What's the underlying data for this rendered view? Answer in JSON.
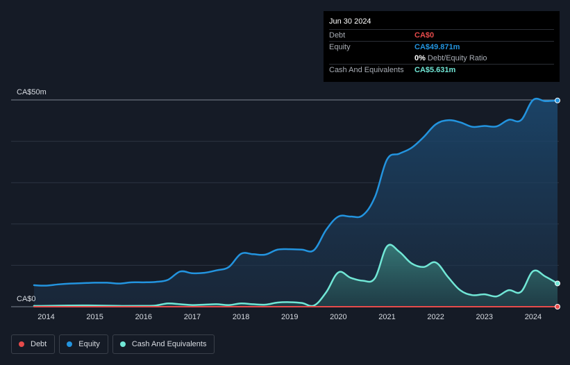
{
  "colors": {
    "background": "#151b26",
    "debt": "#e64b4b",
    "equity": "#2394df",
    "cash": "#71e7d6"
  },
  "tooltip": {
    "date": "Jun 30 2024",
    "rows": [
      {
        "label": "Debt",
        "value": "CA$0",
        "color": "#e64b4b"
      },
      {
        "label": "Equity",
        "value": "CA$49.871m",
        "color": "#2394df"
      },
      {
        "label": "Cash And Equivalents",
        "value": "CA$5.631m",
        "color": "#71e7d6"
      }
    ],
    "ratio_value": "0%",
    "ratio_label": "Debt/Equity Ratio"
  },
  "legend": [
    {
      "label": "Debt",
      "color": "#e64b4b"
    },
    {
      "label": "Equity",
      "color": "#2394df"
    },
    {
      "label": "Cash And Equivalents",
      "color": "#71e7d6"
    }
  ],
  "chart_data": {
    "type": "area",
    "xlabel": "",
    "ylabel": "",
    "y_tick_labels": [
      "CA$0",
      "CA$50m"
    ],
    "ylim": [
      0,
      50
    ],
    "y_unit": "CA$ millions",
    "xlim": [
      2013.75,
      2024.5
    ],
    "x_tick_labels": [
      "2014",
      "2015",
      "2016",
      "2017",
      "2018",
      "2019",
      "2020",
      "2021",
      "2022",
      "2023",
      "2024"
    ],
    "grid": true,
    "legend_position": "bottom-left",
    "series": [
      {
        "name": "Debt",
        "color": "#e64b4b",
        "points": [
          [
            2013.75,
            0
          ],
          [
            2024.5,
            0
          ]
        ]
      },
      {
        "name": "Equity",
        "color": "#2394df",
        "points": [
          [
            2013.75,
            5.2
          ],
          [
            2014.0,
            5.1
          ],
          [
            2014.25,
            5.4
          ],
          [
            2014.5,
            5.6
          ],
          [
            2014.75,
            5.7
          ],
          [
            2015.0,
            5.8
          ],
          [
            2015.25,
            5.8
          ],
          [
            2015.5,
            5.6
          ],
          [
            2015.75,
            5.9
          ],
          [
            2016.0,
            5.9
          ],
          [
            2016.25,
            6.0
          ],
          [
            2016.5,
            6.5
          ],
          [
            2016.75,
            8.5
          ],
          [
            2017.0,
            8.1
          ],
          [
            2017.25,
            8.2
          ],
          [
            2017.5,
            8.8
          ],
          [
            2017.75,
            9.6
          ],
          [
            2018.0,
            12.8
          ],
          [
            2018.25,
            12.7
          ],
          [
            2018.5,
            12.6
          ],
          [
            2018.75,
            13.8
          ],
          [
            2019.0,
            13.9
          ],
          [
            2019.25,
            13.8
          ],
          [
            2019.5,
            13.7
          ],
          [
            2019.75,
            18.6
          ],
          [
            2020.0,
            21.8
          ],
          [
            2020.25,
            21.8
          ],
          [
            2020.5,
            22.1
          ],
          [
            2020.75,
            26.5
          ],
          [
            2021.0,
            35.6
          ],
          [
            2021.25,
            37.0
          ],
          [
            2021.5,
            38.4
          ],
          [
            2021.75,
            41.0
          ],
          [
            2022.0,
            44.1
          ],
          [
            2022.25,
            45.1
          ],
          [
            2022.5,
            44.6
          ],
          [
            2022.75,
            43.5
          ],
          [
            2023.0,
            43.7
          ],
          [
            2023.25,
            43.6
          ],
          [
            2023.5,
            45.2
          ],
          [
            2023.75,
            45.1
          ],
          [
            2024.0,
            50.0
          ],
          [
            2024.25,
            49.7
          ],
          [
            2024.5,
            49.871
          ]
        ]
      },
      {
        "name": "Cash And Equivalents",
        "color": "#71e7d6",
        "points": [
          [
            2013.75,
            0.2
          ],
          [
            2014.0,
            0.2
          ],
          [
            2014.5,
            0.3
          ],
          [
            2015.0,
            0.3
          ],
          [
            2015.5,
            0.2
          ],
          [
            2016.0,
            0.2
          ],
          [
            2016.25,
            0.3
          ],
          [
            2016.5,
            0.8
          ],
          [
            2016.75,
            0.6
          ],
          [
            2017.0,
            0.4
          ],
          [
            2017.25,
            0.5
          ],
          [
            2017.5,
            0.6
          ],
          [
            2017.75,
            0.4
          ],
          [
            2018.0,
            0.8
          ],
          [
            2018.25,
            0.6
          ],
          [
            2018.5,
            0.5
          ],
          [
            2018.75,
            1.0
          ],
          [
            2019.0,
            1.1
          ],
          [
            2019.25,
            0.9
          ],
          [
            2019.5,
            0.3
          ],
          [
            2019.75,
            3.5
          ],
          [
            2020.0,
            8.3
          ],
          [
            2020.25,
            7.0
          ],
          [
            2020.5,
            6.3
          ],
          [
            2020.75,
            6.9
          ],
          [
            2021.0,
            14.6
          ],
          [
            2021.25,
            13.3
          ],
          [
            2021.5,
            10.5
          ],
          [
            2021.75,
            9.6
          ],
          [
            2022.0,
            10.7
          ],
          [
            2022.25,
            7.2
          ],
          [
            2022.5,
            4.0
          ],
          [
            2022.75,
            2.8
          ],
          [
            2023.0,
            3.0
          ],
          [
            2023.25,
            2.5
          ],
          [
            2023.5,
            4.0
          ],
          [
            2023.75,
            3.6
          ],
          [
            2024.0,
            8.6
          ],
          [
            2024.25,
            7.3
          ],
          [
            2024.5,
            5.631
          ]
        ]
      }
    ]
  }
}
